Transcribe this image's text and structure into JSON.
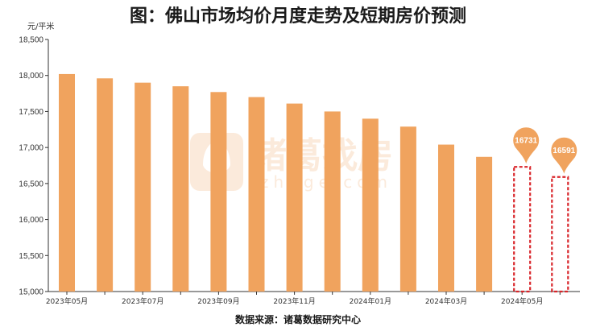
{
  "chart_data": {
    "type": "bar",
    "title": "图：佛山市场均价月度走势及短期房价预测",
    "ylabel": "元/平米",
    "ylim": [
      15000,
      18500
    ],
    "yticks": [
      15000,
      15500,
      16000,
      16500,
      17000,
      17500,
      18000,
      18500
    ],
    "ytick_labels": [
      "15,000",
      "15,500",
      "16,000",
      "16,500",
      "17,000",
      "17,500",
      "18,000",
      "18,500"
    ],
    "categories": [
      "2023年05月",
      "2023年06月",
      "2023年07月",
      "2023年08月",
      "2023年09月",
      "2023年10月",
      "2023年11月",
      "2023年12月",
      "2024年01月",
      "2024年02月",
      "2024年03月",
      "2024年04月",
      "2024年05月",
      "2024年06月"
    ],
    "x_tick_labels": [
      "2023年05月",
      "",
      "2023年07月",
      "",
      "2023年09月",
      "",
      "2023年11月",
      "",
      "2024年01月",
      "",
      "2024年03月",
      "",
      "2024年05月",
      ""
    ],
    "values": [
      18020,
      17960,
      17900,
      17850,
      17770,
      17700,
      17610,
      17500,
      17400,
      17290,
      17040,
      16870,
      16731,
      16591
    ],
    "forecast": [
      false,
      false,
      false,
      false,
      false,
      false,
      false,
      false,
      false,
      false,
      false,
      false,
      true,
      true
    ],
    "forecast_labels": [
      "16731",
      "16591"
    ],
    "grid": false,
    "colors": {
      "bar": "#F0A35E",
      "forecast_border": "#D9262B",
      "pin": "#F0A35E",
      "pin_text": "#ffffff"
    }
  },
  "source": "数据来源：诸葛数据研究中心",
  "watermark": {
    "cn": "诸葛找房",
    "en": "zhuge.com"
  }
}
